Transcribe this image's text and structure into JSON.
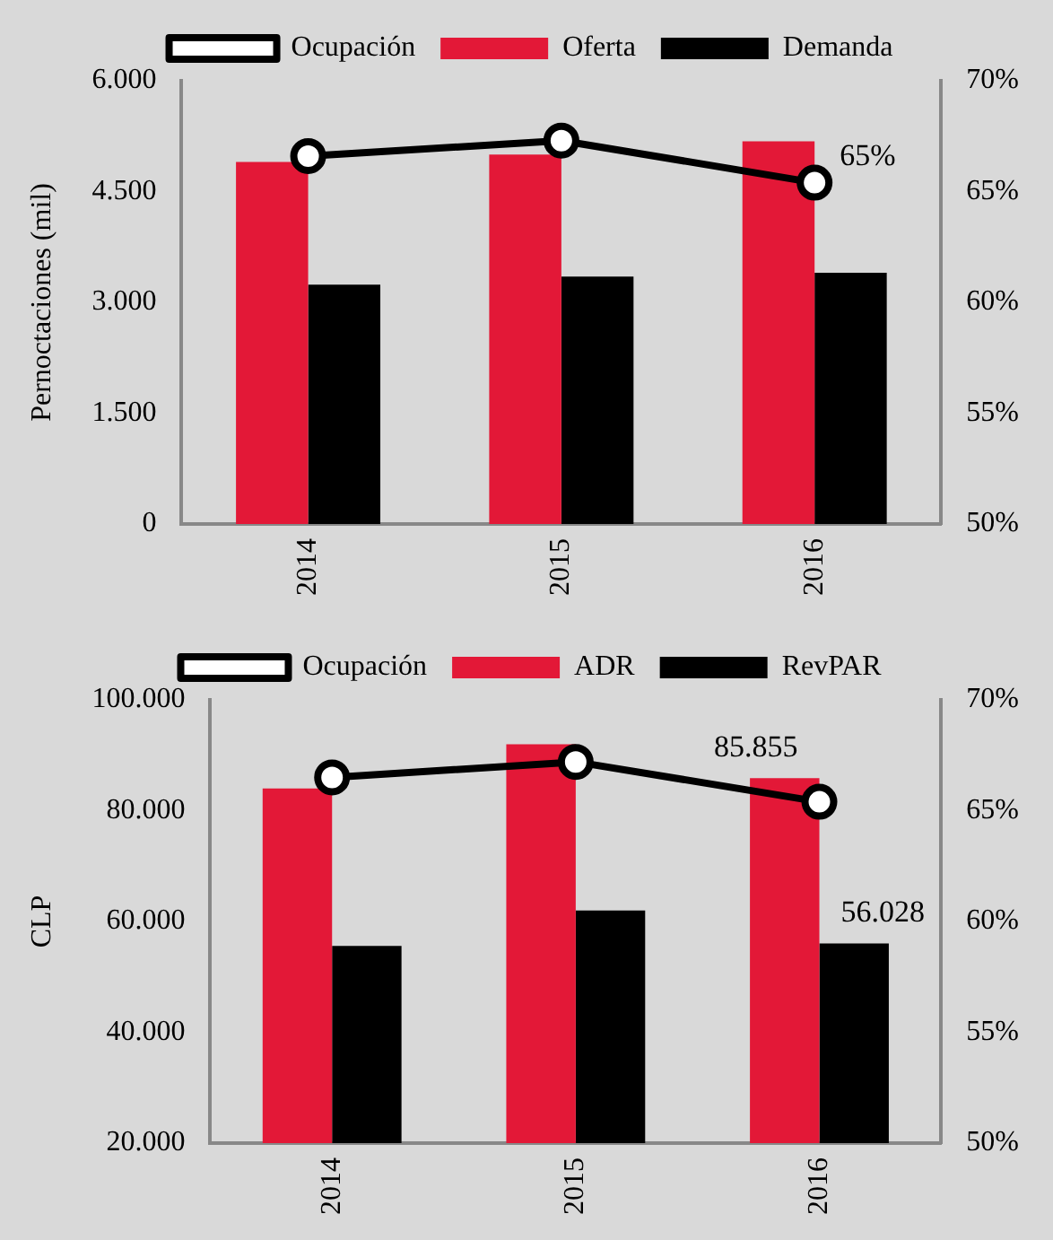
{
  "chart_data": [
    {
      "type": "bar",
      "ylabel": "Pernoctaciones (mil)",
      "categories": [
        "2014",
        "2015",
        "2016"
      ],
      "legend": "top",
      "ylim": [
        0,
        6000
      ],
      "yticks": [
        {
          "value": 0,
          "label": "0"
        },
        {
          "value": 1500,
          "label": "1.500"
        },
        {
          "value": 3000,
          "label": "3.000"
        },
        {
          "value": 4500,
          "label": "4.500"
        },
        {
          "value": 6000,
          "label": "6.000"
        }
      ],
      "y2lim": [
        50,
        70
      ],
      "y2ticks": [
        {
          "value": 50,
          "label": "50%"
        },
        {
          "value": 55,
          "label": "55%"
        },
        {
          "value": 60,
          "label": "60%"
        },
        {
          "value": 65,
          "label": "65%"
        },
        {
          "value": 70,
          "label": "70%"
        }
      ],
      "series": [
        {
          "name": "Oferta",
          "color": "#e31837",
          "values": [
            4900,
            5000,
            5180
          ]
        },
        {
          "name": "Demanda",
          "color": "#000000",
          "values": [
            3240,
            3350,
            3400
          ]
        },
        {
          "name": "Ocupación",
          "type": "line",
          "axis": "y2",
          "color": "#000000",
          "marker": "circle",
          "values": [
            66.6,
            67.3,
            65.4
          ],
          "value_labels": [
            null,
            null,
            "65%"
          ]
        }
      ]
    },
    {
      "type": "bar",
      "ylabel": "CLP",
      "categories": [
        "2014",
        "2015",
        "2016"
      ],
      "legend": "top",
      "ylim": [
        20000,
        100000
      ],
      "yticks": [
        {
          "value": 20000,
          "label": "20.000"
        },
        {
          "value": 40000,
          "label": "40.000"
        },
        {
          "value": 60000,
          "label": "60.000"
        },
        {
          "value": 80000,
          "label": "80.000"
        },
        {
          "value": 100000,
          "label": "100.000"
        }
      ],
      "y2lim": [
        50,
        70
      ],
      "y2ticks": [
        {
          "value": 50,
          "label": "50%"
        },
        {
          "value": 55,
          "label": "55%"
        },
        {
          "value": 60,
          "label": "60%"
        },
        {
          "value": 65,
          "label": "65%"
        },
        {
          "value": 70,
          "label": "70%"
        }
      ],
      "series": [
        {
          "name": "ADR",
          "color": "#e31837",
          "values": [
            84000,
            92000,
            85855
          ],
          "value_labels": [
            null,
            null,
            "85.855"
          ]
        },
        {
          "name": "RevPAR",
          "color": "#000000",
          "values": [
            55600,
            62000,
            56028
          ],
          "value_labels": [
            null,
            null,
            "56.028"
          ]
        },
        {
          "name": "Ocupación",
          "type": "line",
          "axis": "y2",
          "color": "#000000",
          "marker": "circle",
          "values": [
            66.5,
            67.2,
            65.4
          ]
        }
      ]
    }
  ]
}
